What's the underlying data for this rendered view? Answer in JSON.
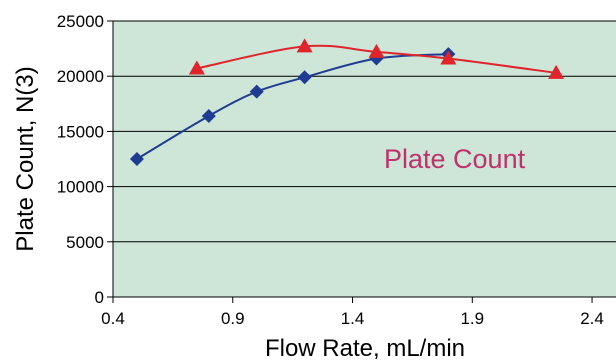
{
  "chart_data": {
    "type": "line",
    "title": "",
    "xlabel": "Flow Rate, mL/min",
    "ylabel": "Plate Count, N(3)",
    "xlim": [
      0.4,
      2.5
    ],
    "ylim": [
      0,
      25000
    ],
    "x_ticks": [
      0.4,
      0.9,
      1.4,
      1.9,
      2.4
    ],
    "x_tick_labels": [
      "0.4",
      "0.9",
      "1.4",
      "1.9",
      "2.4"
    ],
    "y_ticks": [
      0,
      5000,
      10000,
      15000,
      20000,
      25000
    ],
    "y_tick_labels": [
      "0",
      "5000",
      "10000",
      "15000",
      "20000",
      "25000"
    ],
    "grid": "horizontal",
    "plot_background": "#cde6d8",
    "annotation": {
      "text": "Plate Count",
      "color": "#c0306b"
    },
    "series": [
      {
        "color": "#1f3c93",
        "marker": "diamond",
        "x": [
          0.5,
          0.8,
          1.0,
          1.2,
          1.5,
          1.8
        ],
        "y": [
          12500,
          16400,
          18600,
          19900,
          21600,
          22000
        ]
      },
      {
        "color": "#e0242b",
        "marker": "triangle",
        "x": [
          0.75,
          1.2,
          1.5,
          1.8,
          2.25
        ],
        "y": [
          20700,
          22700,
          22200,
          21600,
          20300
        ]
      }
    ]
  }
}
